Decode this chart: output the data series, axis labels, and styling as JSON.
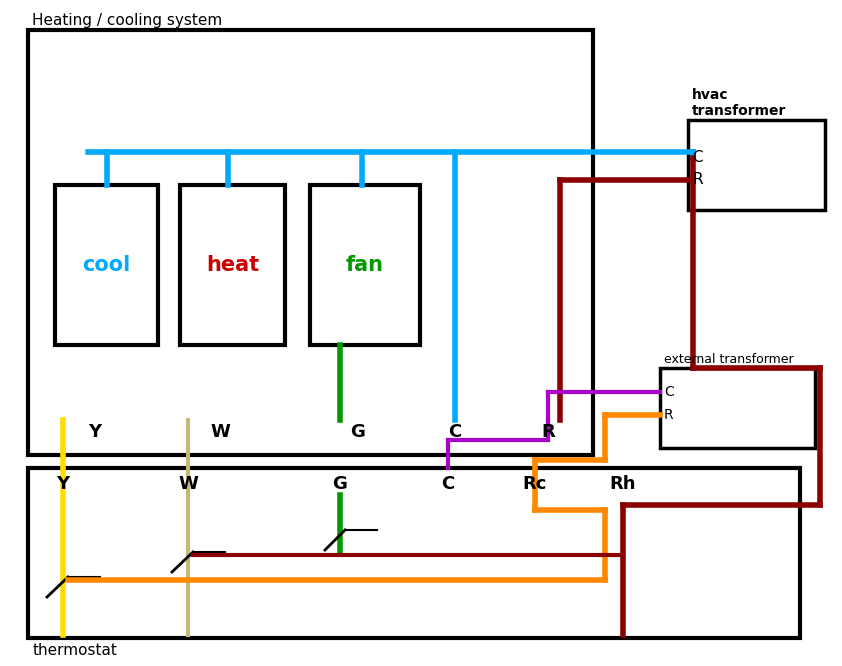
{
  "bg_color": "#ffffff",
  "title_heating": "Heating / cooling system",
  "title_thermostat": "thermostat",
  "title_hvac": "hvac\ntransformer",
  "title_external": "external transformer",
  "blue": "#00aaff",
  "darkred": "#8b0000",
  "yellow": "#ffdd00",
  "beige": "#c8b878",
  "green": "#009900",
  "orange": "#ff8800",
  "purple": "#aa00cc",
  "black": "#000000",
  "lw": 3
}
